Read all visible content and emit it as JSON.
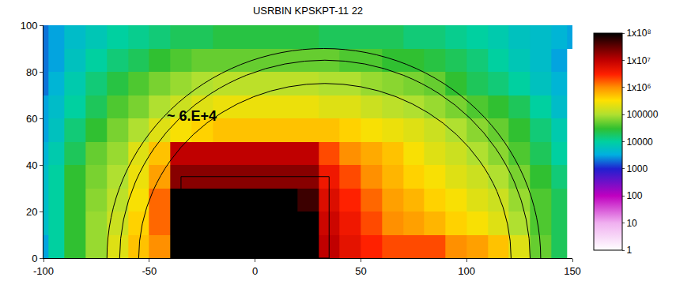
{
  "chart_data": {
    "type": "heatmap",
    "title": "USRBIN KPSKPT-11 22",
    "x": [
      -100,
      -95,
      -85,
      -75,
      -65,
      -55,
      -45,
      -35,
      -25,
      -15,
      -5,
      5,
      15,
      25,
      35,
      45,
      55,
      65,
      75,
      85,
      95,
      105,
      115,
      125,
      135,
      145,
      150
    ],
    "y": [
      0,
      10,
      20,
      30,
      40,
      50,
      60,
      70,
      80,
      90,
      100
    ],
    "values": [
      [
        3000.0,
        10000.0,
        30000.0,
        80000.0,
        200000.0,
        500000.0,
        1000000.0,
        100000000.0,
        100000000.0,
        100000000.0,
        100000000.0,
        100000000.0,
        100000000.0,
        100000000.0,
        10000000.0,
        5000000.0,
        3000000.0,
        2000000.0,
        2000000.0,
        2000000.0,
        1000000.0,
        800000.0,
        500000.0,
        200000.0,
        50000.0,
        20000.0
      ],
      [
        5000.0,
        10000.0,
        30000.0,
        80000.0,
        150000.0,
        400000.0,
        1500000.0,
        100000000.0,
        100000000.0,
        100000000.0,
        100000000.0,
        100000000.0,
        100000000.0,
        100000000.0,
        8000000.0,
        4000000.0,
        2000000.0,
        1000000.0,
        800000.0,
        600000.0,
        400000.0,
        300000.0,
        200000.0,
        100000.0,
        40000.0,
        20000.0
      ],
      [
        5000.0,
        10000.0,
        30000.0,
        70000.0,
        120000.0,
        300000.0,
        1500000.0,
        100000000.0,
        100000000.0,
        100000000.0,
        100000000.0,
        100000000.0,
        100000000.0,
        50000000.0,
        6000000.0,
        3000000.0,
        1500000.0,
        800000.0,
        600000.0,
        400000.0,
        300000.0,
        200000.0,
        150000.0,
        80000.0,
        40000.0,
        20000.0
      ],
      [
        5000.0,
        10000.0,
        30000.0,
        60000.0,
        100000.0,
        250000.0,
        800000.0,
        20000000.0,
        20000000.0,
        20000000.0,
        20000000.0,
        20000000.0,
        20000000.0,
        20000000.0,
        4000000.0,
        2000000.0,
        1000000.0,
        600000.0,
        400000.0,
        300000.0,
        200000.0,
        150000.0,
        100000.0,
        60000.0,
        30000.0,
        15000.0
      ],
      [
        4000.0,
        8000.0,
        20000.0,
        50000.0,
        80000.0,
        200000.0,
        500000.0,
        10000000.0,
        10000000.0,
        10000000.0,
        10000000.0,
        10000000.0,
        10000000.0,
        10000000.0,
        2000000.0,
        1000000.0,
        700000.0,
        500000.0,
        300000.0,
        200000.0,
        150000.0,
        100000.0,
        70000.0,
        40000.0,
        20000.0,
        10000.0
      ],
      [
        3000.0,
        6000.0,
        15000.0,
        30000.0,
        60000.0,
        100000.0,
        200000.0,
        300000.0,
        400000.0,
        500000.0,
        500000.0,
        500000.0,
        500000.0,
        500000.0,
        500000.0,
        400000.0,
        300000.0,
        250000.0,
        200000.0,
        150000.0,
        100000.0,
        70000.0,
        50000.0,
        30000.0,
        15000.0,
        8000.0
      ],
      [
        3000.0,
        5000.0,
        10000.0,
        20000.0,
        40000.0,
        60000.0,
        100000.0,
        150000.0,
        200000.0,
        250000.0,
        250000.0,
        250000.0,
        250000.0,
        250000.0,
        200000.0,
        200000.0,
        150000.0,
        120000.0,
        100000.0,
        80000.0,
        60000.0,
        40000.0,
        30000.0,
        20000.0,
        10000.0,
        5000.0
      ],
      [
        2000.0,
        4000.0,
        8000.0,
        15000.0,
        25000.0,
        40000.0,
        60000.0,
        80000.0,
        100000.0,
        120000.0,
        120000.0,
        120000.0,
        120000.0,
        120000.0,
        100000.0,
        100000.0,
        80000.0,
        70000.0,
        60000.0,
        50000.0,
        30000.0,
        20000.0,
        15000.0,
        10000.0,
        6000.0,
        4000.0
      ],
      [
        2000.0,
        3000.0,
        6000.0,
        10000.0,
        15000.0,
        20000.0,
        30000.0,
        40000.0,
        50000.0,
        50000.0,
        50000.0,
        50000.0,
        50000.0,
        50000.0,
        50000.0,
        40000.0,
        40000.0,
        30000.0,
        30000.0,
        25000.0,
        20000.0,
        15000.0,
        10000.0,
        7000.0,
        5000.0,
        3000.0
      ],
      [
        2000.0,
        3000.0,
        5000.0,
        7000.0,
        10000.0,
        12000.0,
        15000.0,
        20000.0,
        20000.0,
        25000.0,
        25000.0,
        25000.0,
        25000.0,
        25000.0,
        20000.0,
        20000.0,
        20000.0,
        20000.0,
        15000.0,
        15000.0,
        12000.0,
        10000.0,
        8000.0,
        6000.0,
        5000.0,
        4000.0,
        3000.0
      ]
    ],
    "log": true,
    "colorbar": {
      "range": [
        1,
        100000000
      ],
      "ticks": [
        {
          "value": 100000000,
          "label": "1x10⁸"
        },
        {
          "value": 10000000,
          "label": "1x10⁷"
        },
        {
          "value": 1000000,
          "label": "1x10⁶"
        },
        100000,
        10000,
        1000,
        100,
        10,
        1
      ]
    },
    "xlim": [
      -100,
      150
    ],
    "ylim": [
      0,
      100
    ],
    "xticks": [
      -100,
      -50,
      0,
      50,
      100,
      150
    ],
    "yticks": [
      0,
      20,
      40,
      60,
      80,
      100
    ],
    "grid": false,
    "annotations": [
      {
        "text": "~ 6.E+4",
        "x": -30,
        "y": 61
      }
    ],
    "contours": {
      "ellipses": [
        {
          "center": [
            32.5,
            0
          ],
          "rx": 102.5,
          "ry": 90
        },
        {
          "center": [
            33,
            0
          ],
          "rx": 97,
          "ry": 85
        },
        {
          "center": [
            33,
            0
          ],
          "rx": 88,
          "ry": 75
        }
      ],
      "rects": [
        {
          "x": [
            -35,
            35
          ],
          "y": [
            0,
            35
          ]
        }
      ]
    }
  }
}
